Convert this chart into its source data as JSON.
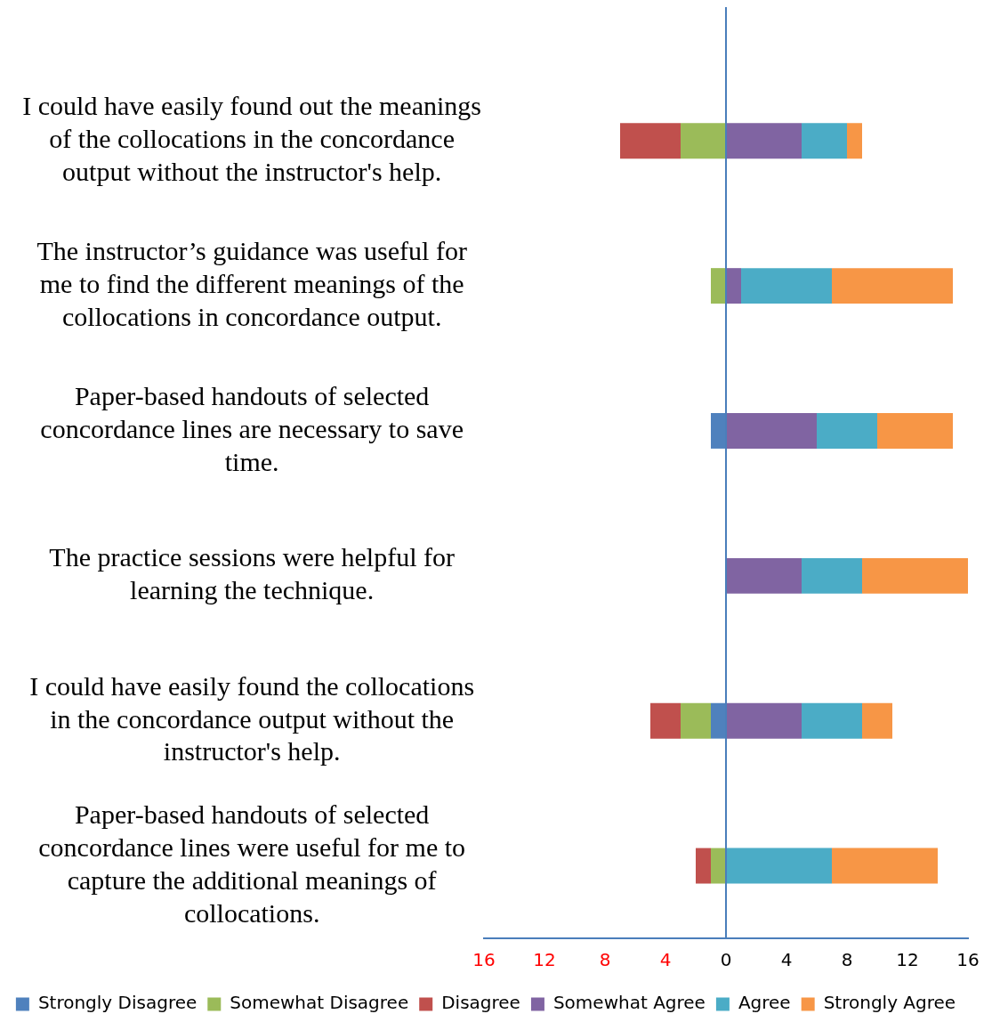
{
  "chart_data": {
    "type": "bar",
    "orientation": "horizontal",
    "stacked": true,
    "categories": [
      "I could have easily found out the meanings of the collocations in the concordance output without the instructor's help.",
      "The instructor’s guidance was useful for me to find the different meanings of the collocations in concordance output.",
      "Paper-based handouts of selected concordance lines are necessary to save time.",
      "The practice sessions were helpful for learning the technique.",
      "I could have easily found the collocations in the concordance output without the instructor's help.",
      "Paper-based handouts of selected concordance lines were useful for me to capture the additional meanings of collocations."
    ],
    "series": [
      {
        "name": "Strongly Disagree",
        "color": "#4f81bd",
        "values": [
          0,
          0,
          -1,
          0,
          -1,
          0
        ]
      },
      {
        "name": "Somewhat Disagree",
        "color": "#9bbb59",
        "values": [
          -3,
          -1,
          0,
          0,
          -2,
          -1
        ]
      },
      {
        "name": "Disagree",
        "color": "#c0504d",
        "values": [
          -4,
          0,
          0,
          0,
          -2,
          -1
        ]
      },
      {
        "name": "Somewhat Agree",
        "color": "#8064a2",
        "values": [
          5,
          1,
          6,
          5,
          5,
          0
        ]
      },
      {
        "name": "Agree",
        "color": "#4bacc6",
        "values": [
          3,
          6,
          4,
          4,
          4,
          7
        ]
      },
      {
        "name": "Strongly Agree",
        "color": "#f79646",
        "values": [
          1,
          8,
          5,
          7,
          2,
          7
        ]
      }
    ],
    "xlim": [
      -16,
      16
    ],
    "xticks": [
      {
        "value": -16,
        "label": "16"
      },
      {
        "value": -12,
        "label": "12"
      },
      {
        "value": -8,
        "label": "8"
      },
      {
        "value": -4,
        "label": "4"
      },
      0,
      4,
      8,
      12,
      16
    ],
    "ref_lines": [
      {
        "axis": "x",
        "value": 0,
        "color": "#4a7ebb"
      }
    ],
    "grid": false,
    "legend": "bottom"
  }
}
